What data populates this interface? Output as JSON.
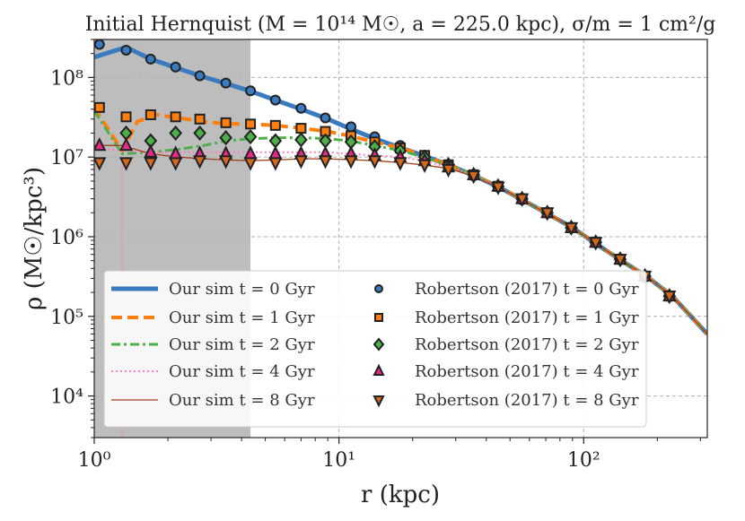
{
  "chart_data": {
    "type": "line",
    "title": "Initial Hernquist (M = 10¹⁴ M☉, a = 225.0 kpc), σ/m = 1 cm²/g",
    "xlabel": "r (kpc)",
    "ylabel": "ρ (M☉/kpc³)",
    "xscale": "log",
    "yscale": "log",
    "xlim": [
      1,
      320
    ],
    "ylim": [
      3000,
      300000000
    ],
    "grid": true,
    "legend_position": "lower-left",
    "x_ticks": [
      {
        "value": 1,
        "label": "10⁰"
      },
      {
        "value": 10,
        "label": "10¹"
      },
      {
        "value": 100,
        "label": "10²"
      }
    ],
    "y_ticks": [
      {
        "value": 10000,
        "label": "10⁴"
      },
      {
        "value": 100000,
        "label": "10⁵"
      },
      {
        "value": 1000000,
        "label": "10⁶"
      },
      {
        "value": 10000000,
        "label": "10⁷"
      },
      {
        "value": 100000000,
        "label": "10⁸"
      }
    ],
    "shaded_region": {
      "x_from": 1,
      "x_to": 4.35,
      "color": "#bdbdbd"
    },
    "vertical_line": {
      "x": 1.3,
      "color": "#ff7fc0"
    },
    "sim_series": [
      {
        "name": "Our sim t = 0 Gyr",
        "color": "#3a7bbf",
        "style": "solid",
        "width": 5,
        "x": [
          1.0,
          1.35,
          1.7,
          2.2,
          2.7,
          3.4,
          4.3,
          5.5,
          7,
          9,
          11,
          14,
          18,
          22,
          28,
          35,
          45,
          55,
          70,
          90,
          110,
          140,
          180,
          230,
          320
        ],
        "y": [
          180000000,
          240000000,
          170000000,
          130000000,
          105000000,
          85000000,
          68000000,
          52000000,
          40000000,
          30000000,
          23000000,
          17000000,
          13000000,
          10500000,
          8000000,
          6000000,
          4200000,
          3000000,
          2000000,
          1300000,
          850000,
          520000,
          320000,
          180000,
          60000
        ]
      },
      {
        "name": "Our sim t = 1 Gyr",
        "color": "#ff7f0e",
        "style": "dashed",
        "width": 4,
        "x": [
          1.0,
          1.3,
          1.5,
          1.8,
          2.2,
          2.8,
          3.5,
          4.3,
          5.5,
          7,
          9,
          11,
          14,
          18,
          22,
          28,
          35,
          45,
          55,
          70,
          90,
          110,
          140,
          180,
          230,
          320
        ],
        "y": [
          42000000,
          12000000,
          28000000,
          34000000,
          31000000,
          28000000,
          26000000,
          26000000,
          25000000,
          23000000,
          21000000,
          18500000,
          15500000,
          13000000,
          10500000,
          8000000,
          6000000,
          4300000,
          3000000,
          2000000,
          1300000,
          850000,
          520000,
          320000,
          180000,
          60000
        ]
      },
      {
        "name": "Our sim t = 2 Gyr",
        "color": "#4daf4a",
        "style": "dashdot",
        "width": 3,
        "x": [
          1.0,
          1.3,
          1.7,
          2.2,
          2.8,
          3.5,
          4.3,
          5.5,
          7,
          9,
          11,
          14,
          18,
          22,
          28,
          35,
          45,
          55,
          70,
          90,
          110,
          140,
          180,
          230,
          320
        ],
        "y": [
          38000000,
          11000000,
          11500000,
          12500000,
          14000000,
          16000000,
          17000000,
          17500000,
          17500000,
          17000000,
          16000000,
          14000000,
          12000000,
          10000000,
          8000000,
          6000000,
          4300000,
          3000000,
          2000000,
          1300000,
          850000,
          520000,
          320000,
          180000,
          60000
        ]
      },
      {
        "name": "Our sim t = 4 Gyr",
        "color": "#ff7fc0",
        "style": "dotted",
        "width": 2,
        "x": [
          1.0,
          1.3,
          1.7,
          2.2,
          2.8,
          3.5,
          4.3,
          5.5,
          7,
          9,
          11,
          14,
          18,
          22,
          28,
          35,
          45,
          55,
          70,
          90,
          110,
          140,
          180,
          230,
          320
        ],
        "y": [
          13000000,
          12000000,
          11500000,
          11500000,
          11500000,
          11500000,
          11500000,
          11500000,
          11500000,
          11500000,
          11000000,
          10500000,
          10000000,
          9000000,
          7500000,
          6000000,
          4300000,
          3000000,
          2000000,
          1300000,
          850000,
          520000,
          320000,
          180000,
          60000
        ]
      },
      {
        "name": "Our sim t = 8 Gyr",
        "color": "#a0401a",
        "style": "solid",
        "width": 1.3,
        "x": [
          1.0,
          1.3,
          1.7,
          2.2,
          2.8,
          3.5,
          4.3,
          5.5,
          7,
          9,
          11,
          14,
          18,
          22,
          28,
          35,
          45,
          55,
          70,
          90,
          110,
          140,
          180,
          230,
          320
        ],
        "y": [
          14000000,
          14000000,
          11000000,
          10000000,
          9500000,
          9200000,
          9000000,
          9200000,
          9500000,
          9500000,
          9300000,
          9000000,
          8500000,
          8000000,
          7200000,
          5800000,
          4200000,
          3000000,
          2000000,
          1300000,
          850000,
          520000,
          320000,
          180000,
          60000
        ]
      }
    ],
    "reference_series": [
      {
        "name": "Robertson (2017) t = 0 Gyr",
        "marker": "circle",
        "color": "#3a7bbf",
        "x": [
          1.05,
          1.35,
          1.7,
          2.15,
          2.7,
          3.45,
          4.35,
          5.5,
          7,
          8.8,
          11.2,
          14,
          17.8,
          22.4,
          28,
          35.5,
          44.7,
          56,
          71,
          89,
          112,
          141,
          178,
          224
        ],
        "y": [
          260000000,
          220000000,
          170000000,
          135000000,
          105000000,
          85000000,
          68000000,
          52000000,
          41000000,
          31000000,
          24000000,
          18000000,
          14000000,
          10500000,
          8000000,
          5800000,
          4200000,
          2900000,
          2000000,
          1300000,
          850000,
          520000,
          310000,
          180000
        ]
      },
      {
        "name": "Robertson (2017) t = 1 Gyr",
        "marker": "square",
        "color": "#ff7f0e",
        "x": [
          1.05,
          1.35,
          1.7,
          2.15,
          2.7,
          3.45,
          4.35,
          5.5,
          7,
          8.8,
          11.2,
          14,
          17.8,
          22.4,
          28,
          35.5,
          44.7,
          56,
          71,
          89,
          112,
          141,
          178,
          224
        ],
        "y": [
          42000000,
          32000000,
          34000000,
          32000000,
          30000000,
          27000000,
          26000000,
          25000000,
          23000000,
          21000000,
          18500000,
          15500000,
          13000000,
          10500000,
          8000000,
          6000000,
          4300000,
          3000000,
          2000000,
          1300000,
          850000,
          520000,
          320000,
          180000
        ]
      },
      {
        "name": "Robertson (2017) t = 2 Gyr",
        "marker": "diamond",
        "color": "#4daf4a",
        "x": [
          1.35,
          1.7,
          2.15,
          2.7,
          3.45,
          4.35,
          5.5,
          7,
          8.8,
          11.2,
          14,
          17.8,
          22.4,
          28,
          35.5,
          44.7,
          56,
          71,
          89,
          112,
          141,
          178,
          224
        ],
        "y": [
          20000000,
          16000000,
          20000000,
          20000000,
          17500000,
          18000000,
          16000000,
          16500000,
          16000000,
          15500000,
          13500000,
          12000000,
          10000000,
          8000000,
          6000000,
          4300000,
          3000000,
          2000000,
          1300000,
          850000,
          520000,
          320000,
          180000
        ]
      },
      {
        "name": "Robertson (2017) t = 4 Gyr",
        "marker": "triangle-up",
        "color": "#e7298a",
        "x": [
          1.05,
          1.35,
          1.7,
          2.15,
          2.7,
          3.45,
          4.35,
          5.5,
          7,
          8.8,
          11.2,
          14,
          17.8,
          22.4,
          28,
          35.5,
          44.7,
          56,
          71,
          89,
          112,
          141,
          178,
          224
        ],
        "y": [
          14000000,
          14000000,
          11500000,
          11000000,
          11000000,
          11000000,
          11000000,
          11000000,
          11000000,
          11000000,
          11000000,
          10500000,
          10000000,
          9000000,
          7500000,
          6000000,
          4300000,
          3000000,
          2000000,
          1300000,
          850000,
          520000,
          320000,
          180000
        ]
      },
      {
        "name": "Robertson (2017) t = 8 Gyr",
        "marker": "triangle-down",
        "color": "#d2691e",
        "x": [
          1.05,
          1.35,
          1.7,
          2.15,
          2.7,
          3.45,
          4.35,
          5.5,
          7,
          8.8,
          11.2,
          14,
          17.8,
          22.4,
          28,
          35.5,
          44.7,
          56,
          71,
          89,
          112,
          141,
          178,
          224
        ],
        "y": [
          8500000,
          8500000,
          8500000,
          8500000,
          9000000,
          9000000,
          8500000,
          8500000,
          9000000,
          9000000,
          9000000,
          9000000,
          8500000,
          8000000,
          7000000,
          5800000,
          4200000,
          3000000,
          2000000,
          1300000,
          850000,
          520000,
          320000,
          180000
        ]
      }
    ]
  }
}
